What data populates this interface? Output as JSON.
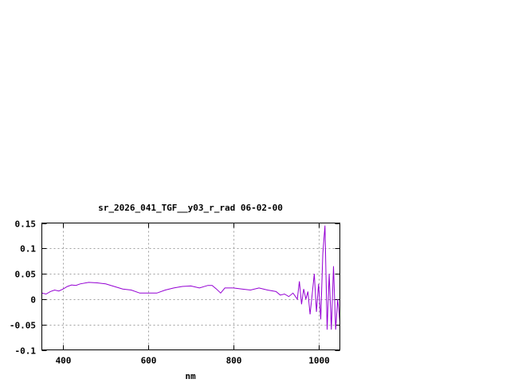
{
  "chart_data": {
    "type": "line",
    "title": "sr_2026_041_TGF__y03_r_rad 06-02-00",
    "xlabel": "nm",
    "ylabel": "",
    "xlim": [
      350,
      1050
    ],
    "ylim": [
      -0.1,
      0.15
    ],
    "xticks": [
      400,
      600,
      800,
      1000
    ],
    "xtick_labels": [
      "400",
      "600",
      "800",
      "1000"
    ],
    "yticks": [
      -0.1,
      -0.05,
      0,
      0.05,
      0.1,
      0.15
    ],
    "ytick_labels": [
      "-0.1",
      "-0.05",
      "0",
      "0.05",
      "0.1",
      "0.15"
    ],
    "grid": true,
    "line_color": "#9400d3",
    "series": [
      {
        "x": [
          350,
          360,
          370,
          380,
          390,
          400,
          410,
          420,
          430,
          440,
          460,
          480,
          500,
          520,
          540,
          560,
          580,
          600,
          620,
          640,
          660,
          680,
          700,
          720,
          740,
          750,
          760,
          770,
          780,
          800,
          820,
          840,
          860,
          880,
          900,
          910,
          920,
          930,
          940,
          950,
          955,
          960,
          965,
          970,
          975,
          980,
          985,
          990,
          995,
          1000,
          1005,
          1010,
          1015,
          1020,
          1025,
          1030,
          1035,
          1040,
          1045,
          1050
        ],
        "y": [
          0.012,
          0.01,
          0.015,
          0.018,
          0.016,
          0.02,
          0.025,
          0.028,
          0.027,
          0.03,
          0.033,
          0.032,
          0.03,
          0.025,
          0.02,
          0.018,
          0.012,
          0.012,
          0.012,
          0.018,
          0.022,
          0.025,
          0.026,
          0.022,
          0.027,
          0.027,
          0.02,
          0.012,
          0.022,
          0.022,
          0.02,
          0.018,
          0.022,
          0.018,
          0.015,
          0.008,
          0.01,
          0.005,
          0.012,
          0.0,
          0.035,
          -0.01,
          0.02,
          0.0,
          0.015,
          -0.03,
          0.01,
          0.05,
          -0.025,
          0.03,
          -0.04,
          0.09,
          0.145,
          -0.06,
          0.05,
          -0.06,
          0.065,
          -0.06,
          0.0,
          -0.045
        ]
      }
    ]
  }
}
